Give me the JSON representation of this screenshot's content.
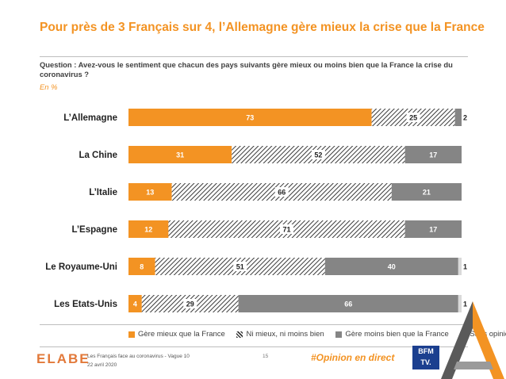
{
  "title": "Pour près de 3 Français sur 4, l’Allemagne gère mieux la crise que la France",
  "question": "Question : Avez-vous le sentiment que chacun des pays suivants gère mieux ou moins bien que la France la crise du coronavirus ?",
  "unit": "En %",
  "chart_data": {
    "type": "bar",
    "orientation": "horizontal",
    "stacked": true,
    "categories": [
      "L’Allemagne",
      "La Chine",
      "L’Italie",
      "L’Espagne",
      "Le Royaume-Uni",
      "Les Etats-Unis"
    ],
    "series": [
      {
        "name": "Gère mieux que la France",
        "values": [
          73,
          31,
          13,
          12,
          8,
          4
        ],
        "color": "#f39323",
        "pattern": "solid"
      },
      {
        "name": "Ni mieux, ni moins bien",
        "values": [
          25,
          52,
          66,
          71,
          51,
          29
        ],
        "color": "#3a3a3a",
        "pattern": "hatched"
      },
      {
        "name": "Gère moins bien que la France",
        "values": [
          2,
          17,
          21,
          17,
          40,
          66
        ],
        "color": "#858585",
        "pattern": "solid"
      },
      {
        "name": "Sans opinion",
        "values": [
          0,
          0,
          0,
          0,
          1,
          1
        ],
        "color": "#d9d9d9",
        "pattern": "solid"
      }
    ],
    "xlim": [
      0,
      100
    ],
    "grid": false,
    "legend_position": "bottom"
  },
  "footer": {
    "logo": "ELABE",
    "source": "Les Français face au coronavirus - Vague 10",
    "date": "22 avril 2020",
    "page": "15",
    "hashtag": "#Opinion en direct",
    "partner_line1": "BFM",
    "partner_line2": "TV."
  },
  "colors": {
    "accent": "#f39323",
    "hatch": "#3a3a3a",
    "grey": "#858585",
    "light": "#d9d9d9"
  }
}
